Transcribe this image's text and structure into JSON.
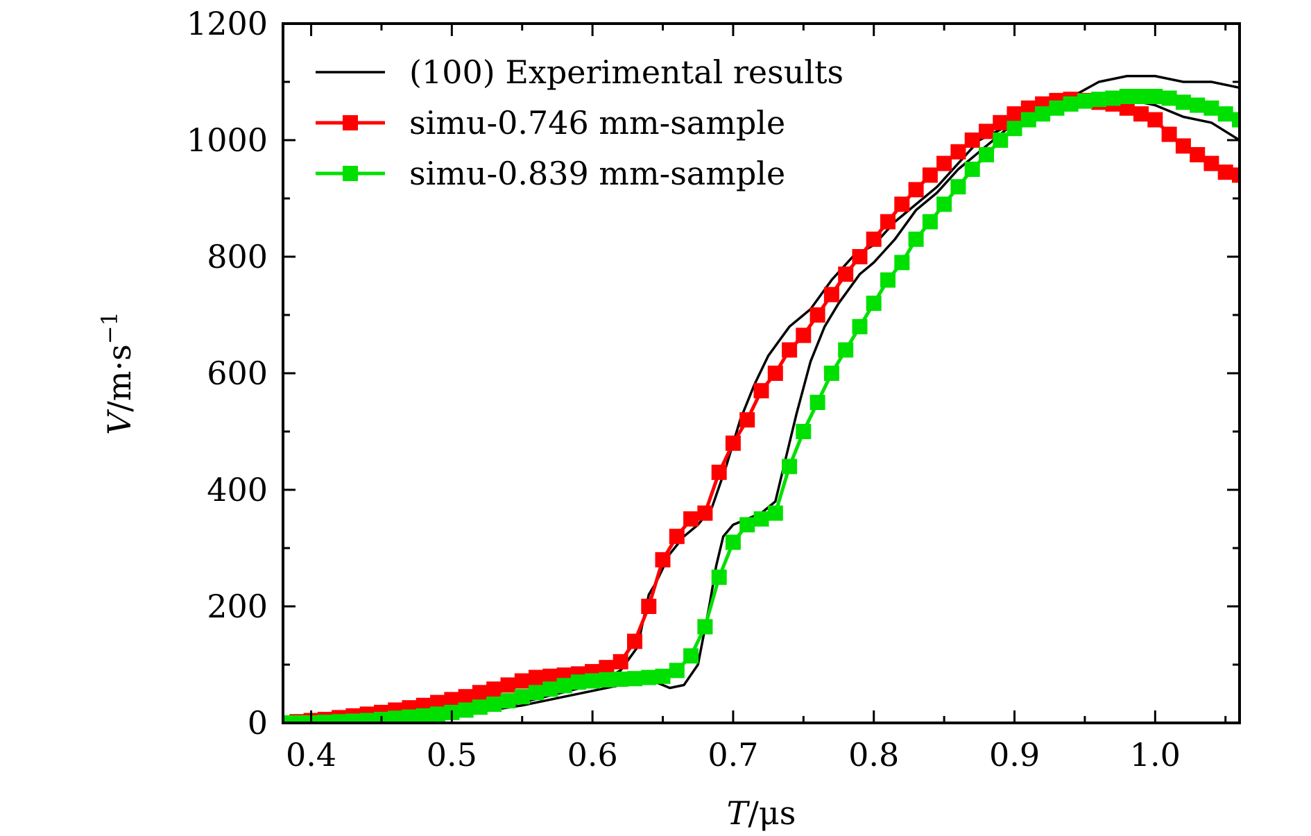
{
  "chart_data": {
    "type": "line",
    "title": "",
    "xlabel_italic": "T",
    "xlabel_rest": "/μs",
    "ylabel_italic": "V",
    "ylabel_rest": "/m·s",
    "ylabel_sup": "−1",
    "xlim": [
      0.38,
      1.06
    ],
    "ylim": [
      0,
      1200
    ],
    "xticks": [
      0.4,
      0.5,
      0.6,
      0.7,
      0.8,
      0.9,
      1.0
    ],
    "xtick_labels": [
      "0.4",
      "0.5",
      "0.6",
      "0.7",
      "0.8",
      "0.9",
      "1.0"
    ],
    "yticks": [
      0,
      200,
      400,
      600,
      800,
      1000,
      1200
    ],
    "ytick_labels": [
      "0",
      "200",
      "400",
      "600",
      "800",
      "1000",
      "1200"
    ],
    "grid": false,
    "legend_position": "top-left",
    "series": [
      {
        "name": "(100) Experimental results",
        "color": "#000000",
        "marker": "none",
        "x": [
          0.38,
          0.45,
          0.5,
          0.55,
          0.6,
          0.62,
          0.632,
          0.64,
          0.645,
          0.655,
          0.665,
          0.675,
          0.685,
          0.695,
          0.705,
          0.715,
          0.725,
          0.74,
          0.755,
          0.77,
          0.785,
          0.8,
          0.815,
          0.83,
          0.845,
          0.86,
          0.875,
          0.9,
          0.93,
          0.96,
          0.98,
          1.0,
          1.02,
          1.04,
          1.06
        ],
        "y": [
          0,
          5,
          15,
          35,
          65,
          90,
          130,
          220,
          240,
          290,
          320,
          340,
          370,
          440,
          520,
          580,
          630,
          680,
          710,
          760,
          800,
          820,
          860,
          890,
          920,
          960,
          1000,
          1030,
          1060,
          1080,
          1070,
          1060,
          1040,
          1030,
          1000
        ]
      },
      {
        "name": "(100) Experimental results",
        "color": "#000000",
        "marker": "none",
        "x": [
          0.38,
          0.45,
          0.5,
          0.55,
          0.6,
          0.63,
          0.645,
          0.655,
          0.665,
          0.675,
          0.683,
          0.688,
          0.693,
          0.7,
          0.71,
          0.72,
          0.73,
          0.735,
          0.745,
          0.755,
          0.765,
          0.775,
          0.79,
          0.8,
          0.815,
          0.83,
          0.845,
          0.86,
          0.88,
          0.9,
          0.93,
          0.96,
          0.98,
          1.0,
          1.02,
          1.04,
          1.06
        ],
        "y": [
          0,
          5,
          12,
          30,
          55,
          70,
          70,
          60,
          65,
          100,
          200,
          270,
          320,
          340,
          350,
          360,
          380,
          430,
          530,
          620,
          680,
          720,
          770,
          790,
          830,
          880,
          910,
          950,
          990,
          1030,
          1060,
          1100,
          1110,
          1110,
          1100,
          1100,
          1090
        ]
      },
      {
        "name": "simu-0.746 mm-sample",
        "color": "#ff0000",
        "marker": "square",
        "x": [
          0.38,
          0.39,
          0.4,
          0.41,
          0.42,
          0.43,
          0.44,
          0.45,
          0.46,
          0.47,
          0.48,
          0.49,
          0.5,
          0.51,
          0.52,
          0.53,
          0.54,
          0.55,
          0.56,
          0.57,
          0.58,
          0.59,
          0.6,
          0.61,
          0.62,
          0.63,
          0.64,
          0.65,
          0.66,
          0.67,
          0.68,
          0.69,
          0.7,
          0.71,
          0.72,
          0.73,
          0.74,
          0.75,
          0.76,
          0.77,
          0.78,
          0.79,
          0.8,
          0.81,
          0.82,
          0.83,
          0.84,
          0.85,
          0.86,
          0.87,
          0.88,
          0.89,
          0.9,
          0.91,
          0.92,
          0.93,
          0.94,
          0.95,
          0.96,
          0.97,
          0.98,
          0.99,
          1.0,
          1.01,
          1.02,
          1.03,
          1.04,
          1.05,
          1.06
        ],
        "y": [
          0,
          2,
          4,
          6,
          9,
          12,
          15,
          18,
          22,
          26,
          30,
          35,
          40,
          45,
          52,
          58,
          65,
          72,
          78,
          80,
          82,
          84,
          88,
          95,
          105,
          140,
          200,
          280,
          320,
          350,
          360,
          430,
          480,
          520,
          570,
          600,
          640,
          665,
          700,
          735,
          770,
          800,
          830,
          860,
          890,
          915,
          940,
          960,
          980,
          1000,
          1015,
          1030,
          1045,
          1055,
          1062,
          1068,
          1070,
          1068,
          1065,
          1062,
          1055,
          1045,
          1035,
          1010,
          990,
          975,
          960,
          945,
          940
        ]
      },
      {
        "name": "simu-0.839 mm-sample",
        "color": "#00e000",
        "marker": "square",
        "x": [
          0.38,
          0.39,
          0.4,
          0.41,
          0.42,
          0.43,
          0.44,
          0.45,
          0.46,
          0.47,
          0.48,
          0.49,
          0.5,
          0.51,
          0.52,
          0.53,
          0.54,
          0.55,
          0.56,
          0.57,
          0.58,
          0.59,
          0.6,
          0.61,
          0.62,
          0.63,
          0.64,
          0.65,
          0.66,
          0.67,
          0.68,
          0.69,
          0.7,
          0.71,
          0.72,
          0.73,
          0.74,
          0.75,
          0.76,
          0.77,
          0.78,
          0.79,
          0.8,
          0.81,
          0.82,
          0.83,
          0.84,
          0.85,
          0.86,
          0.87,
          0.88,
          0.89,
          0.9,
          0.91,
          0.92,
          0.93,
          0.94,
          0.95,
          0.96,
          0.97,
          0.98,
          0.99,
          1.0,
          1.01,
          1.02,
          1.03,
          1.04,
          1.05,
          1.06
        ],
        "y": [
          0,
          0,
          0,
          1,
          2,
          3,
          4,
          6,
          8,
          10,
          12,
          15,
          18,
          22,
          27,
          32,
          38,
          45,
          52,
          58,
          64,
          70,
          72,
          74,
          75,
          76,
          78,
          80,
          90,
          115,
          165,
          250,
          310,
          340,
          350,
          360,
          440,
          500,
          550,
          600,
          640,
          680,
          720,
          760,
          790,
          830,
          860,
          890,
          920,
          950,
          975,
          1000,
          1020,
          1035,
          1045,
          1055,
          1062,
          1067,
          1070,
          1072,
          1075,
          1075,
          1075,
          1072,
          1065,
          1060,
          1055,
          1045,
          1035
        ]
      }
    ],
    "legend_entries": [
      {
        "label": "(100) Experimental results",
        "color": "#000000",
        "marker": "none"
      },
      {
        "label": "simu-0.746 mm-sample",
        "color": "#ff0000",
        "marker": "square"
      },
      {
        "label": "simu-0.839 mm-sample",
        "color": "#00e000",
        "marker": "square"
      }
    ]
  }
}
